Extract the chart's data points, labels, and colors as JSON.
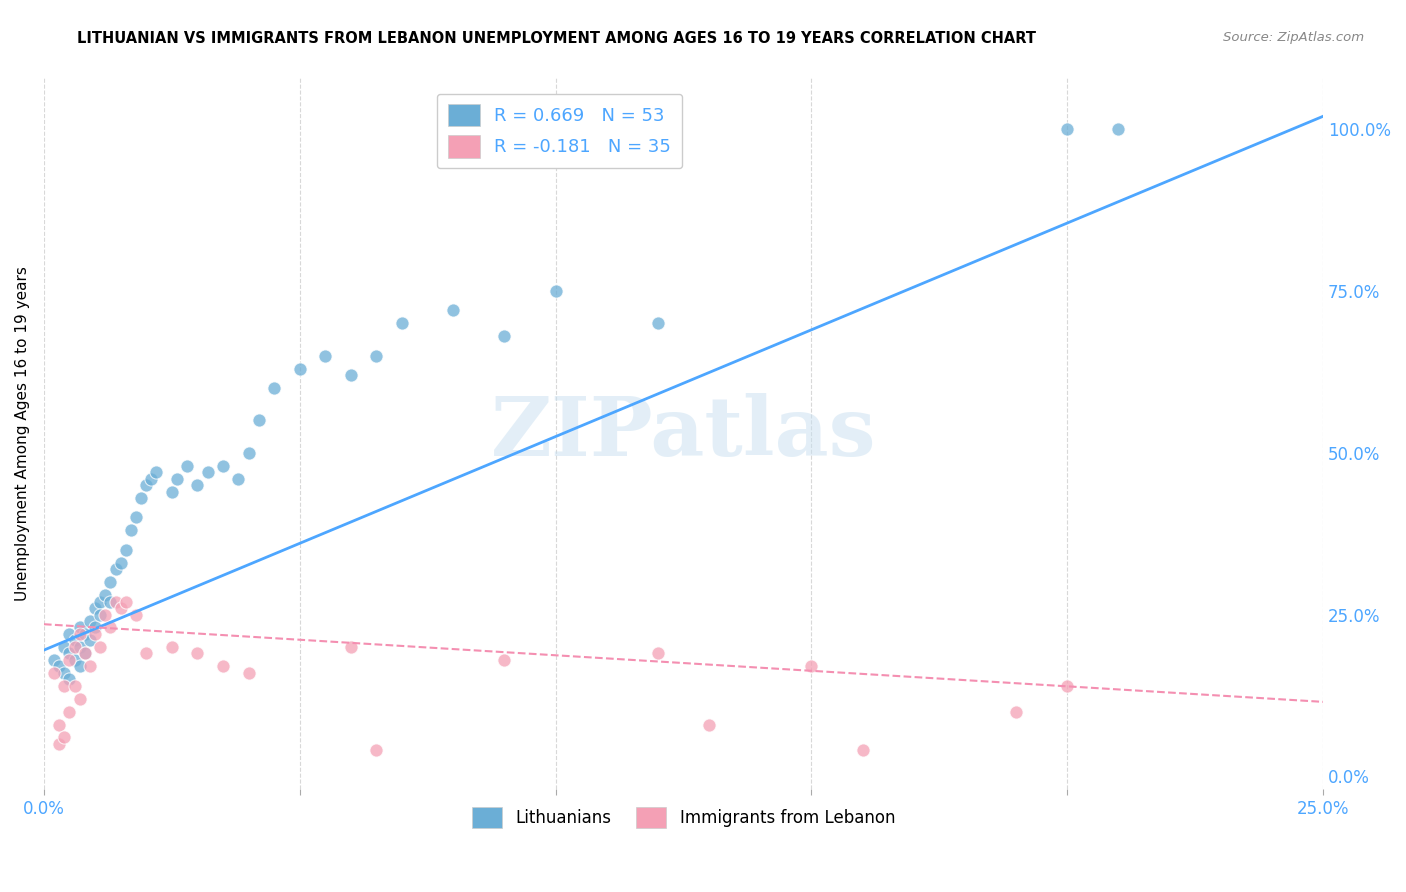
{
  "title": "LITHUANIAN VS IMMIGRANTS FROM LEBANON UNEMPLOYMENT AMONG AGES 16 TO 19 YEARS CORRELATION CHART",
  "source": "Source: ZipAtlas.com",
  "ylabel": "Unemployment Among Ages 16 to 19 years",
  "xlim": [
    0.0,
    0.25
  ],
  "ylim": [
    -0.02,
    1.08
  ],
  "x_ticks": [
    0.0,
    0.05,
    0.1,
    0.15,
    0.2,
    0.25
  ],
  "y_ticks_right": [
    0.0,
    0.25,
    0.5,
    0.75,
    1.0
  ],
  "y_tick_labels_right": [
    "0.0%",
    "25.0%",
    "50.0%",
    "75.0%",
    "100.0%"
  ],
  "blue_color": "#6baed6",
  "pink_color": "#f4a0b5",
  "blue_line_color": "#4da6ff",
  "pink_line_color": "#f48fb1",
  "watermark": "ZIPatlas",
  "blue_scatter_x": [
    0.002,
    0.003,
    0.004,
    0.004,
    0.005,
    0.005,
    0.005,
    0.006,
    0.006,
    0.007,
    0.007,
    0.007,
    0.008,
    0.008,
    0.009,
    0.009,
    0.01,
    0.01,
    0.011,
    0.011,
    0.012,
    0.013,
    0.013,
    0.014,
    0.015,
    0.016,
    0.017,
    0.018,
    0.019,
    0.02,
    0.021,
    0.022,
    0.025,
    0.026,
    0.028,
    0.03,
    0.032,
    0.035,
    0.038,
    0.04,
    0.042,
    0.045,
    0.05,
    0.055,
    0.06,
    0.065,
    0.07,
    0.08,
    0.09,
    0.1,
    0.12,
    0.2,
    0.21
  ],
  "blue_scatter_y": [
    0.18,
    0.17,
    0.2,
    0.16,
    0.19,
    0.22,
    0.15,
    0.21,
    0.18,
    0.2,
    0.23,
    0.17,
    0.22,
    0.19,
    0.24,
    0.21,
    0.23,
    0.26,
    0.27,
    0.25,
    0.28,
    0.3,
    0.27,
    0.32,
    0.33,
    0.35,
    0.38,
    0.4,
    0.43,
    0.45,
    0.46,
    0.47,
    0.44,
    0.46,
    0.48,
    0.45,
    0.47,
    0.48,
    0.46,
    0.5,
    0.55,
    0.6,
    0.63,
    0.65,
    0.62,
    0.65,
    0.7,
    0.72,
    0.68,
    0.75,
    0.7,
    1.0,
    1.0
  ],
  "pink_scatter_x": [
    0.002,
    0.003,
    0.003,
    0.004,
    0.004,
    0.005,
    0.005,
    0.006,
    0.006,
    0.007,
    0.007,
    0.008,
    0.009,
    0.01,
    0.011,
    0.012,
    0.013,
    0.014,
    0.015,
    0.016,
    0.018,
    0.02,
    0.025,
    0.03,
    0.035,
    0.04,
    0.06,
    0.065,
    0.09,
    0.12,
    0.13,
    0.15,
    0.16,
    0.19,
    0.2
  ],
  "pink_scatter_y": [
    0.16,
    0.05,
    0.08,
    0.14,
    0.06,
    0.18,
    0.1,
    0.2,
    0.14,
    0.22,
    0.12,
    0.19,
    0.17,
    0.22,
    0.2,
    0.25,
    0.23,
    0.27,
    0.26,
    0.27,
    0.25,
    0.19,
    0.2,
    0.19,
    0.17,
    0.16,
    0.2,
    0.04,
    0.18,
    0.19,
    0.08,
    0.17,
    0.04,
    0.1,
    0.14
  ],
  "blue_line_x": [
    0.0,
    0.25
  ],
  "blue_line_y": [
    0.195,
    1.02
  ],
  "pink_line_x": [
    0.0,
    0.25
  ],
  "pink_line_y": [
    0.235,
    0.115
  ],
  "background_color": "#ffffff",
  "grid_color": "#d8d8d8"
}
